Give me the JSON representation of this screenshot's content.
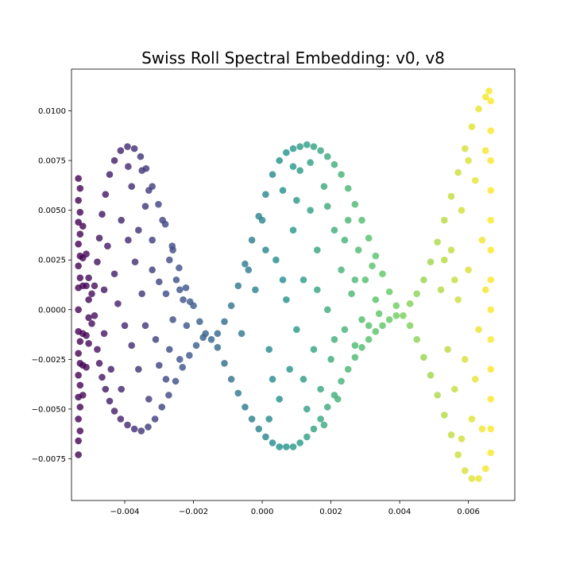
{
  "chart_data": {
    "type": "scatter",
    "title": "Swiss Roll Spectral Embedding: v0, v8",
    "xlabel": "",
    "ylabel": "",
    "xlim": [
      -0.00555,
      0.00735
    ],
    "ylim": [
      -0.0096,
      0.0121
    ],
    "grid": false,
    "legend": "none",
    "colormap": "viridis",
    "colormap_stops": [
      "#440154",
      "#3b528b",
      "#21918c",
      "#5ec962",
      "#fde725"
    ],
    "point_alpha": 0.8,
    "x_ticks": [
      -0.004,
      -0.002,
      0.0,
      0.002,
      0.004,
      0.006
    ],
    "x_tick_labels": [
      "−0.004",
      "−0.002",
      "0.000",
      "0.002",
      "0.004",
      "0.006"
    ],
    "y_ticks": [
      -0.0075,
      -0.005,
      -0.0025,
      0.0,
      0.0025,
      0.005,
      0.0075,
      0.01
    ],
    "y_tick_labels": [
      "−0.0075",
      "−0.0050",
      "−0.0025",
      "0.0000",
      "0.0025",
      "0.0050",
      "0.0075",
      "0.0100"
    ],
    "series": [
      {
        "points": [
          [
            -0.00535,
            0.0066
          ],
          [
            -0.00535,
            0.0055
          ],
          [
            -0.00535,
            0.0044
          ],
          [
            -0.00535,
            0.0033
          ],
          [
            -0.00535,
            0.0022
          ],
          [
            -0.00535,
            0.0011
          ],
          [
            -0.00535,
            0.0
          ],
          [
            -0.00535,
            -0.0011
          ],
          [
            -0.00535,
            -0.0022
          ],
          [
            -0.00535,
            -0.0033
          ],
          [
            -0.00535,
            -0.0044
          ],
          [
            -0.00535,
            -0.0055
          ],
          [
            -0.00535,
            -0.0066
          ],
          [
            -0.00535,
            -0.0073
          ],
          [
            -0.0053,
            0.0061
          ],
          [
            -0.0053,
            0.0049
          ],
          [
            -0.0053,
            0.0038
          ],
          [
            -0.0053,
            0.0027
          ],
          [
            -0.0053,
            0.0016
          ],
          [
            -0.0053,
            -0.0016
          ],
          [
            -0.0053,
            -0.0027
          ],
          [
            -0.0053,
            -0.0038
          ],
          [
            -0.0053,
            -0.0049
          ],
          [
            -0.0053,
            -0.0061
          ],
          [
            -0.00522,
            0.0042
          ],
          [
            -0.00522,
            0.0026
          ],
          [
            -0.00522,
            0.0012
          ],
          [
            -0.00522,
            -0.0012
          ],
          [
            -0.00522,
            -0.0028
          ],
          [
            -0.00522,
            -0.0043
          ],
          [
            -0.00512,
            0.0028
          ],
          [
            -0.00512,
            0.0012
          ],
          [
            -0.00512,
            -0.0013
          ],
          [
            -0.00512,
            -0.0029
          ],
          [
            -0.00505,
            0.0016
          ],
          [
            -0.00505,
            0.0005
          ],
          [
            -0.00505,
            -0.0004
          ],
          [
            -0.00505,
            -0.0017
          ],
          [
            -0.00496,
            0.0008
          ],
          [
            -0.00496,
            -0.0007
          ],
          [
            -0.00488,
            0.0012
          ],
          [
            -0.00488,
            -0.0003
          ],
          [
            -0.0048,
            0.0024
          ],
          [
            -0.00474,
            0.0036
          ],
          [
            -0.00466,
            0.0048
          ],
          [
            -0.00456,
            0.0058
          ],
          [
            -0.00444,
            0.0068
          ],
          [
            -0.0043,
            0.0075
          ],
          [
            -0.00412,
            0.008
          ],
          [
            -0.00392,
            0.0082
          ],
          [
            -0.00372,
            0.0081
          ],
          [
            -0.00354,
            0.0077
          ],
          [
            -0.00338,
            0.0071
          ],
          [
            -0.0032,
            0.0062
          ],
          [
            -0.00302,
            0.0053
          ],
          [
            -0.00282,
            0.0043
          ],
          [
            -0.00262,
            0.0032
          ],
          [
            -0.00242,
            0.0021
          ],
          [
            -0.00222,
            0.0011
          ],
          [
            -0.002,
            0.0002
          ],
          [
            -0.00182,
            -0.0006
          ],
          [
            -0.00165,
            -0.0012
          ],
          [
            -0.0048,
            -0.002
          ],
          [
            -0.00474,
            -0.0027
          ],
          [
            -0.00466,
            -0.0034
          ],
          [
            -0.00456,
            -0.004
          ],
          [
            -0.00444,
            -0.0046
          ],
          [
            -0.0043,
            -0.0051
          ],
          [
            -0.00412,
            -0.0055
          ],
          [
            -0.00392,
            -0.0058
          ],
          [
            -0.00372,
            -0.006
          ],
          [
            -0.00352,
            -0.0061
          ],
          [
            -0.00332,
            -0.0059
          ],
          [
            -0.00312,
            -0.0055
          ],
          [
            -0.00292,
            -0.0049
          ],
          [
            -0.00272,
            -0.0043
          ],
          [
            -0.00252,
            -0.0036
          ],
          [
            -0.00232,
            -0.0029
          ],
          [
            -0.00212,
            -0.0023
          ],
          [
            -0.00192,
            -0.0018
          ],
          [
            -0.00172,
            -0.0014
          ],
          [
            -0.0045,
            0.0032
          ],
          [
            -0.0043,
            0.0018
          ],
          [
            -0.0041,
            0.0045
          ],
          [
            -0.004,
            -0.0008
          ],
          [
            -0.0038,
            0.0062
          ],
          [
            -0.0037,
            0.0024
          ],
          [
            -0.0036,
            -0.003
          ],
          [
            -0.0035,
            0.0008
          ],
          [
            -0.0034,
            0.0052
          ],
          [
            -0.0033,
            -0.0045
          ],
          [
            -0.0032,
            0.0035
          ],
          [
            -0.0031,
            -0.0015
          ],
          [
            -0.003,
            0.0014
          ],
          [
            -0.0029,
            0.0045
          ],
          [
            -0.0028,
            -0.0035
          ],
          [
            -0.0027,
            0.0025
          ],
          [
            -0.0026,
            -0.0005
          ],
          [
            -0.0025,
            0.0015
          ],
          [
            -0.0024,
            -0.0025
          ],
          [
            -0.0023,
            0.0005
          ],
          [
            -0.0044,
            -0.003
          ],
          [
            -0.0042,
            0.0003
          ],
          [
            -0.0039,
            0.0035
          ],
          [
            -0.0041,
            -0.004
          ],
          [
            -0.0038,
            -0.0018
          ],
          [
            -0.0036,
            0.004
          ],
          [
            -0.0034,
            -0.0008
          ],
          [
            -0.0032,
            0.002
          ],
          [
            -0.003,
            -0.0028
          ],
          [
            -0.0028,
            0.0008
          ],
          [
            -0.0027,
            -0.002
          ],
          [
            -0.0026,
            0.003
          ],
          [
            -0.0024,
            0.001
          ],
          [
            -0.0022,
            -0.0008
          ],
          [
            -0.0021,
            0.0004
          ],
          [
            -0.0046,
            0.001
          ],
          [
            -0.0046,
            -0.0012
          ],
          [
            -0.0039,
            0.0072
          ],
          [
            -0.0035,
            0.007
          ],
          [
            -0.0033,
            0.006
          ],
          [
            -0.00148,
            -0.0015
          ],
          [
            -0.0013,
            -0.0012
          ],
          [
            -0.0011,
            -0.0006
          ],
          [
            -0.0009,
            0.0002
          ],
          [
            -0.0007,
            0.0012
          ],
          [
            -0.0005,
            0.0023
          ],
          [
            -0.0003,
            0.0035
          ],
          [
            -0.0001,
            0.0047
          ],
          [
            0.0001,
            0.0058
          ],
          [
            0.0003,
            0.0068
          ],
          [
            0.0005,
            0.0075
          ],
          [
            0.0007,
            0.0079
          ],
          [
            0.0009,
            0.0081
          ],
          [
            0.0011,
            0.0082
          ],
          [
            0.0013,
            0.0083
          ],
          [
            0.0015,
            0.0082
          ],
          [
            0.0017,
            0.008
          ],
          [
            0.0019,
            0.0077
          ],
          [
            0.0021,
            0.0073
          ],
          [
            0.0023,
            0.0068
          ],
          [
            0.0025,
            0.0061
          ],
          [
            0.0027,
            0.0053
          ],
          [
            0.0029,
            0.0045
          ],
          [
            0.0031,
            0.0036
          ],
          [
            0.0033,
            0.0027
          ],
          [
            0.0035,
            0.0018
          ],
          [
            0.0037,
            0.0009
          ],
          [
            0.0039,
            0.0002
          ],
          [
            0.0041,
            -0.0003
          ],
          [
            -0.0013,
            -0.0019
          ],
          [
            -0.0011,
            -0.0027
          ],
          [
            -0.0009,
            -0.0035
          ],
          [
            -0.0007,
            -0.0042
          ],
          [
            -0.0005,
            -0.0049
          ],
          [
            -0.0003,
            -0.0055
          ],
          [
            -0.0001,
            -0.006
          ],
          [
            0.0001,
            -0.0064
          ],
          [
            0.0003,
            -0.0067
          ],
          [
            0.0005,
            -0.0069
          ],
          [
            0.0007,
            -0.0069
          ],
          [
            0.0009,
            -0.0069
          ],
          [
            0.0011,
            -0.0067
          ],
          [
            0.0013,
            -0.0064
          ],
          [
            0.0015,
            -0.006
          ],
          [
            0.0017,
            -0.0055
          ],
          [
            0.0019,
            -0.0049
          ],
          [
            0.0021,
            -0.0043
          ],
          [
            0.0023,
            -0.0036
          ],
          [
            0.0025,
            -0.003
          ],
          [
            0.0027,
            -0.0024
          ],
          [
            0.0029,
            -0.0019
          ],
          [
            0.0031,
            -0.0015
          ],
          [
            0.0033,
            -0.0011
          ],
          [
            0.0035,
            -0.0008
          ],
          [
            0.0037,
            -0.0005
          ],
          [
            0.0039,
            -0.0003
          ],
          [
            -0.0002,
            0.001
          ],
          [
            0.0,
            0.0045
          ],
          [
            0.0002,
            -0.002
          ],
          [
            0.0004,
            0.0025
          ],
          [
            0.0005,
            -0.0045
          ],
          [
            0.0006,
            0.006
          ],
          [
            0.0007,
            0.0005
          ],
          [
            0.0008,
            -0.003
          ],
          [
            0.0009,
            0.004
          ],
          [
            0.001,
            -0.001
          ],
          [
            0.0011,
            0.007
          ],
          [
            0.0012,
            0.0015
          ],
          [
            0.0013,
            -0.005
          ],
          [
            0.0014,
            0.005
          ],
          [
            0.0015,
            -0.002
          ],
          [
            0.0016,
            0.003
          ],
          [
            0.0017,
            -0.004
          ],
          [
            0.0018,
            0.0062
          ],
          [
            0.0019,
            0.0
          ],
          [
            0.002,
            -0.0025
          ],
          [
            0.0021,
            0.004
          ],
          [
            0.0022,
            -0.0045
          ],
          [
            0.0023,
            0.002
          ],
          [
            0.0024,
            -0.001
          ],
          [
            0.0025,
            0.0045
          ],
          [
            0.0026,
            0.0008
          ],
          [
            0.0027,
            -0.0018
          ],
          [
            0.0028,
            0.003
          ],
          [
            0.0029,
            -0.0005
          ],
          [
            0.003,
            0.0015
          ],
          [
            0.0031,
            -0.0008
          ],
          [
            0.0032,
            0.0022
          ],
          [
            0.0033,
            0.0005
          ],
          [
            0.0034,
            -0.0002
          ],
          [
            -0.0006,
            -0.0012
          ],
          [
            -0.0004,
            0.002
          ],
          [
            0.0001,
            0.003
          ],
          [
            0.0003,
            -0.0035
          ],
          [
            0.0006,
            0.0015
          ],
          [
            0.001,
            0.0055
          ],
          [
            0.0012,
            -0.0035
          ],
          [
            0.0016,
            0.001
          ],
          [
            0.0019,
            0.0052
          ],
          [
            0.0021,
            -0.0015
          ],
          [
            0.0024,
            0.0035
          ],
          [
            0.0027,
            0.0015
          ],
          [
            0.0009,
            0.0072
          ],
          [
            0.0014,
            0.0074
          ],
          [
            0.0002,
            -0.0055
          ],
          [
            0.0018,
            -0.0058
          ],
          [
            0.0043,
            -0.0008
          ],
          [
            0.0045,
            -0.0015
          ],
          [
            0.0047,
            -0.0024
          ],
          [
            0.0049,
            -0.0033
          ],
          [
            0.0051,
            -0.0043
          ],
          [
            0.0053,
            -0.0053
          ],
          [
            0.0055,
            -0.0063
          ],
          [
            0.0057,
            -0.0073
          ],
          [
            0.0059,
            -0.0081
          ],
          [
            0.0061,
            -0.0085
          ],
          [
            0.0063,
            -0.0085
          ],
          [
            0.0065,
            -0.008
          ],
          [
            0.0043,
            0.0003
          ],
          [
            0.0045,
            0.0008
          ],
          [
            0.0047,
            0.0015
          ],
          [
            0.0049,
            0.0024
          ],
          [
            0.0051,
            0.0034
          ],
          [
            0.0053,
            0.0045
          ],
          [
            0.0055,
            0.0057
          ],
          [
            0.0057,
            0.0069
          ],
          [
            0.0059,
            0.0081
          ],
          [
            0.0061,
            0.0092
          ],
          [
            0.0063,
            0.0101
          ],
          [
            0.0065,
            0.0107
          ],
          [
            0.0066,
            0.011
          ],
          [
            0.00665,
            0.0105
          ],
          [
            0.00665,
            0.009
          ],
          [
            0.00665,
            0.0075
          ],
          [
            0.00665,
            0.006
          ],
          [
            0.00665,
            0.0045
          ],
          [
            0.00665,
            0.003
          ],
          [
            0.00665,
            0.0015
          ],
          [
            0.00665,
            0.0
          ],
          [
            0.00665,
            -0.0015
          ],
          [
            0.00665,
            -0.003
          ],
          [
            0.00665,
            -0.0045
          ],
          [
            0.00665,
            -0.006
          ],
          [
            0.00665,
            -0.0072
          ],
          [
            0.0052,
            0.001
          ],
          [
            0.0054,
            -0.002
          ],
          [
            0.0055,
            0.003
          ],
          [
            0.0056,
            -0.004
          ],
          [
            0.0057,
            0.0005
          ],
          [
            0.0058,
            0.005
          ],
          [
            0.0059,
            -0.0025
          ],
          [
            0.006,
            0.002
          ],
          [
            0.0061,
            -0.0055
          ],
          [
            0.0062,
            0.0065
          ],
          [
            0.0063,
            -0.001
          ],
          [
            0.0064,
            0.0035
          ],
          [
            0.0064,
            -0.006
          ],
          [
            0.0065,
            0.008
          ],
          [
            0.0065,
            0.001
          ],
          [
            0.006,
            0.0075
          ],
          [
            0.0058,
            -0.0065
          ],
          [
            0.0053,
            0.0025
          ],
          [
            0.0056,
            0.0015
          ],
          [
            0.0062,
            -0.0035
          ]
        ]
      }
    ]
  }
}
